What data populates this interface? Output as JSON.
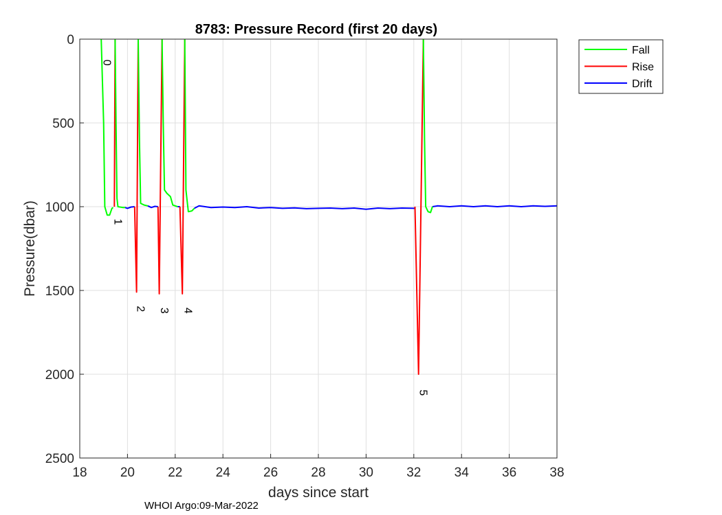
{
  "chart_data": {
    "type": "line",
    "title": "8783: Pressure Record (first 20 days)",
    "xlabel": "days since start",
    "ylabel": "Pressure(dbar)",
    "xlim": [
      18,
      38
    ],
    "ylim": [
      0,
      2500
    ],
    "y_reversed": true,
    "grid": true,
    "xticks": [
      18,
      20,
      22,
      24,
      26,
      28,
      30,
      32,
      34,
      36,
      38
    ],
    "yticks": [
      0,
      500,
      1000,
      1500,
      2000,
      2500
    ],
    "legend_position": "outside-top-right",
    "series": [
      {
        "name": "Fall",
        "color": "#00ff00",
        "segments": [
          [
            [
              18.9,
              0
            ],
            [
              19.0,
              500
            ],
            [
              19.05,
              1000
            ],
            [
              19.15,
              1050
            ],
            [
              19.25,
              1050
            ],
            [
              19.35,
              1010
            ],
            [
              19.4,
              1005
            ]
          ],
          [
            [
              19.48,
              0
            ],
            [
              19.52,
              500
            ],
            [
              19.56,
              950
            ],
            [
              19.6,
              1000
            ],
            [
              19.8,
              1005
            ],
            [
              19.9,
              1005
            ]
          ],
          [
            [
              20.45,
              0
            ],
            [
              20.5,
              600
            ],
            [
              20.55,
              980
            ],
            [
              20.7,
              990
            ],
            [
              20.85,
              995
            ]
          ],
          [
            [
              21.45,
              0
            ],
            [
              21.5,
              500
            ],
            [
              21.55,
              900
            ],
            [
              21.65,
              920
            ],
            [
              21.8,
              940
            ],
            [
              21.9,
              990
            ],
            [
              22.1,
              1000
            ]
          ],
          [
            [
              22.4,
              0
            ],
            [
              22.45,
              900
            ],
            [
              22.55,
              1030
            ],
            [
              22.7,
              1025
            ],
            [
              22.8,
              1010
            ]
          ],
          [
            [
              32.4,
              0
            ],
            [
              32.45,
              600
            ],
            [
              32.5,
              1000
            ],
            [
              32.6,
              1030
            ],
            [
              32.7,
              1035
            ],
            [
              32.78,
              1000
            ]
          ]
        ]
      },
      {
        "name": "Rise",
        "color": "#ff0000",
        "segments": [
          [
            [
              19.45,
              1000
            ],
            [
              19.48,
              0
            ]
          ],
          [
            [
              20.3,
              1000
            ],
            [
              20.38,
              1510
            ],
            [
              20.45,
              0
            ]
          ],
          [
            [
              21.28,
              1000
            ],
            [
              21.33,
              1520
            ],
            [
              21.45,
              0
            ]
          ],
          [
            [
              22.2,
              1000
            ],
            [
              22.3,
              1520
            ],
            [
              22.4,
              0
            ]
          ],
          [
            [
              32.05,
              1000
            ],
            [
              32.2,
              2000
            ],
            [
              32.4,
              0
            ]
          ]
        ]
      },
      {
        "name": "Drift",
        "color": "#0000ff",
        "segments": [
          [
            [
              19.9,
              1005
            ],
            [
              20.0,
              1010
            ],
            [
              20.15,
              1002
            ],
            [
              20.3,
              1000
            ]
          ],
          [
            [
              20.85,
              995
            ],
            [
              21.0,
              1005
            ],
            [
              21.15,
              998
            ],
            [
              21.28,
              1000
            ]
          ],
          [
            [
              22.1,
              1000
            ],
            [
              22.2,
              1000
            ]
          ],
          [
            [
              22.8,
              1010
            ],
            [
              23.0,
              995
            ],
            [
              23.5,
              1005
            ],
            [
              24.0,
              1002
            ],
            [
              24.5,
              1005
            ],
            [
              25.0,
              1000
            ],
            [
              25.5,
              1008
            ],
            [
              26.0,
              1005
            ],
            [
              26.5,
              1010
            ],
            [
              27.0,
              1007
            ],
            [
              27.5,
              1012
            ],
            [
              28.0,
              1010
            ],
            [
              28.5,
              1008
            ],
            [
              29.0,
              1012
            ],
            [
              29.5,
              1008
            ],
            [
              30.0,
              1015
            ],
            [
              30.5,
              1008
            ],
            [
              31.0,
              1012
            ],
            [
              31.5,
              1008
            ],
            [
              32.05,
              1010
            ]
          ],
          [
            [
              32.78,
              1000
            ],
            [
              33.0,
              995
            ],
            [
              33.5,
              1000
            ],
            [
              34.0,
              995
            ],
            [
              34.5,
              1000
            ],
            [
              35.0,
              995
            ],
            [
              35.5,
              1000
            ],
            [
              36.0,
              995
            ],
            [
              36.5,
              1000
            ],
            [
              37.0,
              995
            ],
            [
              37.5,
              998
            ],
            [
              38.0,
              995
            ]
          ]
        ]
      }
    ],
    "annotations": [
      {
        "text": "0",
        "x": 19.0,
        "y": 140
      },
      {
        "text": "1",
        "x": 19.45,
        "y": 1090
      },
      {
        "text": "2",
        "x": 20.4,
        "y": 1610
      },
      {
        "text": "3",
        "x": 21.4,
        "y": 1620
      },
      {
        "text": "4",
        "x": 22.4,
        "y": 1620
      },
      {
        "text": "5",
        "x": 32.25,
        "y": 2110
      }
    ],
    "footer": "WHOI Argo:09-Mar-2022"
  }
}
